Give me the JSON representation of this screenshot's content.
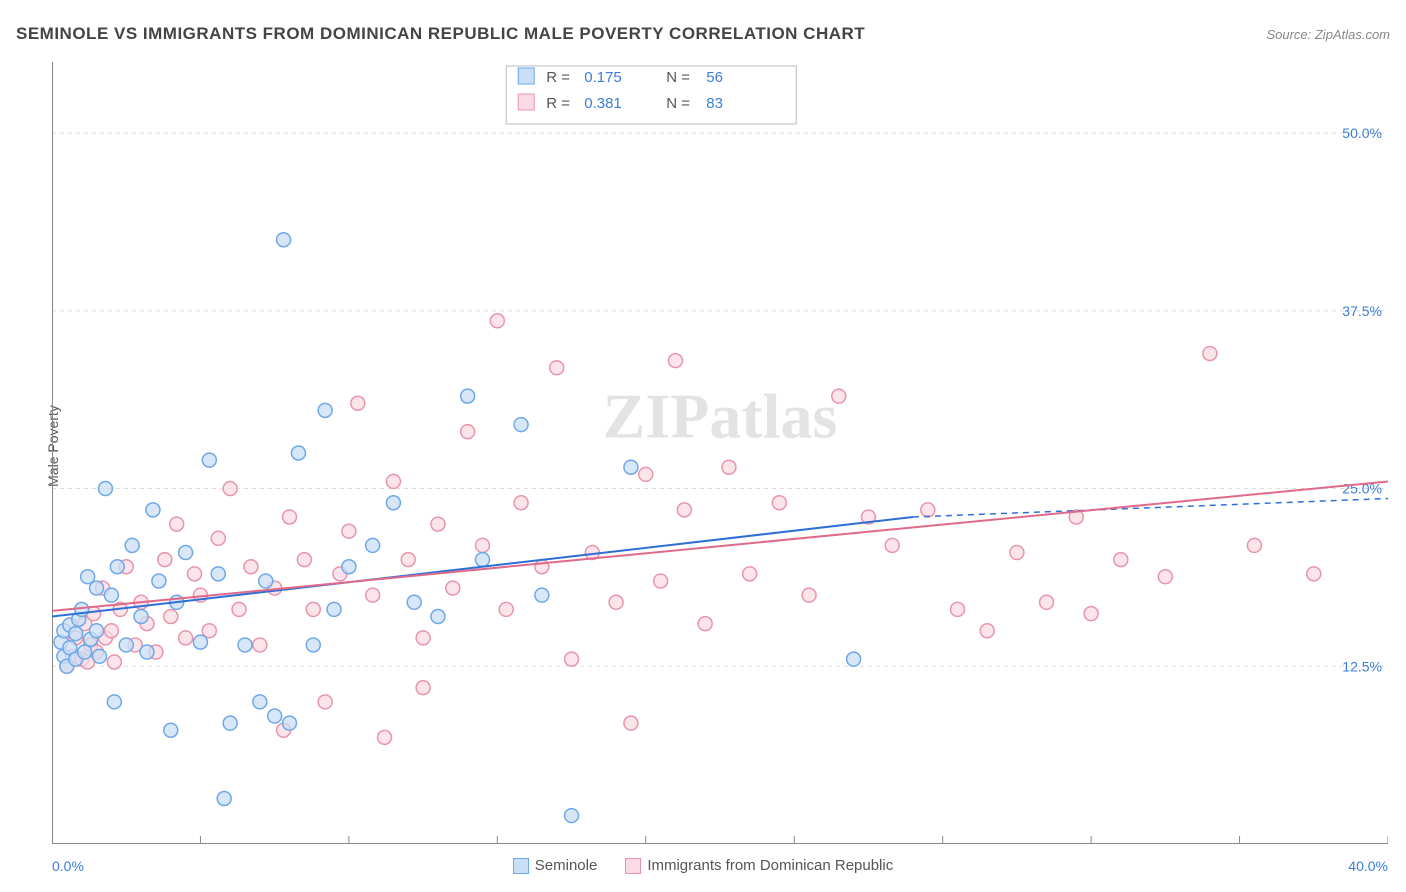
{
  "title": "SEMINOLE VS IMMIGRANTS FROM DOMINICAN REPUBLIC MALE POVERTY CORRELATION CHART",
  "source": "Source: ZipAtlas.com",
  "y_axis_label": "Male Poverty",
  "watermark": "ZIPatlas",
  "chart": {
    "type": "scatter",
    "xlim": [
      0,
      45
    ],
    "ylim": [
      0,
      55
    ],
    "x_ticks": [
      0,
      5,
      10,
      15,
      20,
      25,
      30,
      35,
      40,
      45
    ],
    "y_grid": [
      12.5,
      25.0,
      37.5,
      50.0
    ],
    "y_tick_labels": [
      "12.5%",
      "25.0%",
      "37.5%",
      "50.0%"
    ],
    "x_min_label": "0.0%",
    "x_max_label": "40.0%",
    "background_color": "#ffffff",
    "grid_color": "#dddddd",
    "border_color": "#888888",
    "marker_radius": 7,
    "series": [
      {
        "name": "Seminole",
        "fill": "#c9dff5",
        "stroke": "#6fa8e8",
        "line_color": "#2e6fd6",
        "R": "0.175",
        "N": "56",
        "reg_y_at_xmin": 16.0,
        "reg_y_at_xmid": 23.0,
        "reg_y_at_xmax": 24.3,
        "solid_end_x": 29,
        "points": [
          [
            0.3,
            14.2
          ],
          [
            0.4,
            13.2
          ],
          [
            0.4,
            15.0
          ],
          [
            0.5,
            12.5
          ],
          [
            0.6,
            13.8
          ],
          [
            0.6,
            15.4
          ],
          [
            0.8,
            13.0
          ],
          [
            0.8,
            14.8
          ],
          [
            0.9,
            15.8
          ],
          [
            1.0,
            16.5
          ],
          [
            1.1,
            13.5
          ],
          [
            1.2,
            18.8
          ],
          [
            1.3,
            14.4
          ],
          [
            1.5,
            15.0
          ],
          [
            1.5,
            18.0
          ],
          [
            1.6,
            13.2
          ],
          [
            1.8,
            25.0
          ],
          [
            2.0,
            17.5
          ],
          [
            2.1,
            10.0
          ],
          [
            2.2,
            19.5
          ],
          [
            2.5,
            14.0
          ],
          [
            2.7,
            21.0
          ],
          [
            3.0,
            16.0
          ],
          [
            3.2,
            13.5
          ],
          [
            3.4,
            23.5
          ],
          [
            3.6,
            18.5
          ],
          [
            4.0,
            8.0
          ],
          [
            4.2,
            17.0
          ],
          [
            4.5,
            20.5
          ],
          [
            5.0,
            14.2
          ],
          [
            5.3,
            27.0
          ],
          [
            5.6,
            19.0
          ],
          [
            5.8,
            3.2
          ],
          [
            6.0,
            8.5
          ],
          [
            6.5,
            14.0
          ],
          [
            7.0,
            10.0
          ],
          [
            7.2,
            18.5
          ],
          [
            7.5,
            9.0
          ],
          [
            7.8,
            42.5
          ],
          [
            8.0,
            8.5
          ],
          [
            8.3,
            27.5
          ],
          [
            8.8,
            14.0
          ],
          [
            9.2,
            30.5
          ],
          [
            9.5,
            16.5
          ],
          [
            10.0,
            19.5
          ],
          [
            10.8,
            21.0
          ],
          [
            11.5,
            24.0
          ],
          [
            12.2,
            17.0
          ],
          [
            13.0,
            16.0
          ],
          [
            14.0,
            31.5
          ],
          [
            14.5,
            20.0
          ],
          [
            15.8,
            29.5
          ],
          [
            16.5,
            17.5
          ],
          [
            17.5,
            2.0
          ],
          [
            19.5,
            26.5
          ],
          [
            27.0,
            13.0
          ]
        ]
      },
      {
        "name": "Immigrants from Dominican Republic",
        "fill": "#fadbe3",
        "stroke": "#e895ac",
        "line_color": "#e06a8a",
        "R": "0.381",
        "N": "83",
        "reg_y_at_xmin": 16.4,
        "reg_y_at_xmax": 25.5,
        "points": [
          [
            0.5,
            12.5
          ],
          [
            0.7,
            13.2
          ],
          [
            0.8,
            14.5
          ],
          [
            1.0,
            13.0
          ],
          [
            1.1,
            15.5
          ],
          [
            1.2,
            12.8
          ],
          [
            1.3,
            14.0
          ],
          [
            1.4,
            16.2
          ],
          [
            1.5,
            13.5
          ],
          [
            1.7,
            18.0
          ],
          [
            1.8,
            14.5
          ],
          [
            2.0,
            15.0
          ],
          [
            2.1,
            12.8
          ],
          [
            2.3,
            16.5
          ],
          [
            2.5,
            19.5
          ],
          [
            2.8,
            14.0
          ],
          [
            3.0,
            17.0
          ],
          [
            3.2,
            15.5
          ],
          [
            3.5,
            13.5
          ],
          [
            3.8,
            20.0
          ],
          [
            4.0,
            16.0
          ],
          [
            4.2,
            22.5
          ],
          [
            4.5,
            14.5
          ],
          [
            4.8,
            19.0
          ],
          [
            5.0,
            17.5
          ],
          [
            5.3,
            15.0
          ],
          [
            5.6,
            21.5
          ],
          [
            6.0,
            25.0
          ],
          [
            6.3,
            16.5
          ],
          [
            6.7,
            19.5
          ],
          [
            7.0,
            14.0
          ],
          [
            7.5,
            18.0
          ],
          [
            7.8,
            8.0
          ],
          [
            8.0,
            23.0
          ],
          [
            8.5,
            20.0
          ],
          [
            8.8,
            16.5
          ],
          [
            9.2,
            10.0
          ],
          [
            9.7,
            19.0
          ],
          [
            10.0,
            22.0
          ],
          [
            10.3,
            31.0
          ],
          [
            10.8,
            17.5
          ],
          [
            11.2,
            7.5
          ],
          [
            11.5,
            25.5
          ],
          [
            12.0,
            20.0
          ],
          [
            12.5,
            14.5
          ],
          [
            12.5,
            11.0
          ],
          [
            13.0,
            22.5
          ],
          [
            13.5,
            18.0
          ],
          [
            14.0,
            29.0
          ],
          [
            14.5,
            21.0
          ],
          [
            15.0,
            36.8
          ],
          [
            15.3,
            16.5
          ],
          [
            15.8,
            24.0
          ],
          [
            16.5,
            19.5
          ],
          [
            17.0,
            33.5
          ],
          [
            17.5,
            13.0
          ],
          [
            18.2,
            20.5
          ],
          [
            19.0,
            17.0
          ],
          [
            19.5,
            8.5
          ],
          [
            20.0,
            26.0
          ],
          [
            20.5,
            18.5
          ],
          [
            21.0,
            34.0
          ],
          [
            21.3,
            23.5
          ],
          [
            22.0,
            15.5
          ],
          [
            22.8,
            26.5
          ],
          [
            23.5,
            19.0
          ],
          [
            24.5,
            24.0
          ],
          [
            25.5,
            17.5
          ],
          [
            26.5,
            31.5
          ],
          [
            27.5,
            23.0
          ],
          [
            28.3,
            21.0
          ],
          [
            29.5,
            23.5
          ],
          [
            30.5,
            16.5
          ],
          [
            31.5,
            15.0
          ],
          [
            32.5,
            20.5
          ],
          [
            33.5,
            17.0
          ],
          [
            34.5,
            23.0
          ],
          [
            35.0,
            16.2
          ],
          [
            36.0,
            20.0
          ],
          [
            37.5,
            18.8
          ],
          [
            39.0,
            34.5
          ],
          [
            40.5,
            21.0
          ],
          [
            42.5,
            19.0
          ]
        ]
      }
    ]
  },
  "legend_top": {
    "rows": [
      {
        "swatch_fill": "#c9dff5",
        "swatch_stroke": "#6fa8e8",
        "R": "0.175",
        "N": "56"
      },
      {
        "swatch_fill": "#fadbe3",
        "swatch_stroke": "#e895ac",
        "R": "0.381",
        "N": "83"
      }
    ]
  }
}
